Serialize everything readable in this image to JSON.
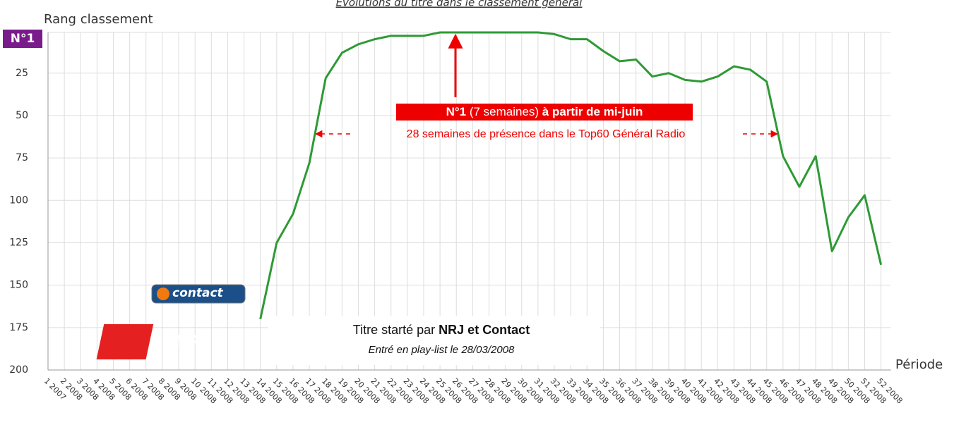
{
  "chart_data": {
    "type": "line",
    "title": "Evolutions du titre dans le classement général",
    "y_label": "Rang classement",
    "x_label": "Période",
    "y_inverted": true,
    "grid": true,
    "categories": [
      "1 2007",
      "2 2008",
      "3 2008",
      "4 2008",
      "5 2008",
      "6 2008",
      "7 2008",
      "8 2008",
      "9 2008",
      "10 2008",
      "11 2008",
      "12 2008",
      "13 2008",
      "14 2008",
      "15 2008",
      "16 2008",
      "17 2008",
      "18 2008",
      "19 2008",
      "20 2008",
      "21 2008",
      "22 2008",
      "23 2008",
      "24 2008",
      "25 2008",
      "26 2008",
      "27 2008",
      "28 2008",
      "29 2008",
      "30 2008",
      "31 2008",
      "32 2008",
      "33 2008",
      "34 2008",
      "35 2008",
      "36 2008",
      "37 2008",
      "38 2008",
      "39 2008",
      "40 2008",
      "41 2008",
      "42 2008",
      "43 2008",
      "44 2008",
      "45 2008",
      "46 2008",
      "47 2008",
      "48 2008",
      "49 2008",
      "50 2008",
      "51 2008",
      "52 2008"
    ],
    "series": [
      {
        "name": "Rang",
        "color": "#2e9a35",
        "values": [
          null,
          null,
          null,
          null,
          null,
          null,
          null,
          null,
          null,
          null,
          null,
          null,
          null,
          170,
          125,
          108,
          78,
          28,
          13,
          8,
          5,
          3,
          3,
          3,
          1,
          1,
          1,
          1,
          1,
          1,
          1,
          2,
          5,
          5,
          12,
          18,
          17,
          27,
          25,
          29,
          30,
          27,
          21,
          23,
          30,
          74,
          92,
          74,
          130,
          110,
          97,
          138
        ]
      }
    ],
    "ylim": [
      1,
      200
    ],
    "yticks": [
      {
        "value": 1,
        "label": "N°1"
      },
      25,
      50,
      75,
      100,
      125,
      150,
      175,
      200
    ],
    "annotations": {
      "number_one": [
        "N°1",
        " (7 semaines) ",
        "à partir de mi-juin"
      ],
      "presence": "28 semaines de présence dans le Top60 Général Radio",
      "started": [
        "Titre starté par ",
        "NRJ et Contact"
      ],
      "playlist": "Entré en play-list le 28/03/2008"
    },
    "logos": [
      "contact",
      "NRJ"
    ]
  }
}
